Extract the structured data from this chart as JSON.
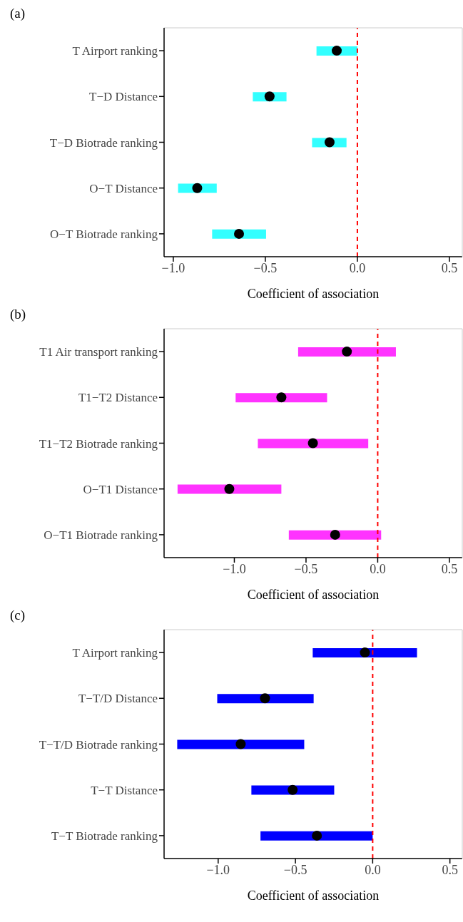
{
  "chart_data": [
    {
      "type": "bar",
      "orientation": "horizontal",
      "title": "(a)",
      "xlabel": "Coefficient of association",
      "categories": [
        "T Airport ranking",
        "T−D Distance",
        "T−D Biotrade ranking",
        "O−T Distance",
        "O−T Biotrade ranking"
      ],
      "series": [
        {
          "color": "#33ffff",
          "base": [
            -0.222,
            -0.568,
            -0.246,
            -0.974,
            -0.789
          ],
          "values": [
            0.222,
            0.183,
            0.187,
            0.21,
            0.293
          ]
        },
        {
          "type": "scatter",
          "color": "#000000",
          "marker": "circle",
          "values": [
            -0.112,
            -0.477,
            -0.151,
            -0.87,
            -0.643
          ]
        }
      ],
      "xlim": [
        -1.05,
        0.57
      ],
      "xticks": [
        {
          "value": -1,
          "label": "−1.0"
        },
        {
          "value": -0.5,
          "label": "−0.5"
        },
        {
          "value": 0,
          "label": "0.0"
        },
        {
          "value": 0.5,
          "label": "0.5"
        }
      ],
      "ref_lines": [
        {
          "axis": "x",
          "value": 0,
          "color": "#ff0000",
          "line_style": "dashed"
        }
      ],
      "grid": false,
      "legend": false
    },
    {
      "type": "bar",
      "orientation": "horizontal",
      "title": "(b)",
      "xlabel": "Coefficient of association",
      "categories": [
        "T1 Air transport ranking",
        "T1−T2 Distance",
        "T1−T2 Biotrade ranking",
        "O−T1 Distance",
        "O−T1 Biotrade ranking"
      ],
      "series": [
        {
          "color": "#ff33ff",
          "base": [
            -0.555,
            -0.991,
            -0.836,
            -1.396,
            -0.62
          ],
          "values": [
            0.682,
            0.638,
            0.77,
            0.724,
            0.644
          ]
        },
        {
          "type": "scatter",
          "color": "#000000",
          "marker": "circle",
          "values": [
            -0.215,
            -0.672,
            -0.452,
            -1.035,
            -0.297
          ]
        }
      ],
      "xlim": [
        -1.49,
        0.59
      ],
      "xticks": [
        {
          "value": -1,
          "label": "−1.0"
        },
        {
          "value": -0.5,
          "label": "−0.5"
        },
        {
          "value": 0,
          "label": "0.0"
        },
        {
          "value": 0.5,
          "label": "0.5"
        }
      ],
      "ref_lines": [
        {
          "axis": "x",
          "value": 0,
          "color": "#ff0000",
          "line_style": "dashed"
        }
      ],
      "grid": false,
      "legend": false
    },
    {
      "type": "bar",
      "orientation": "horizontal",
      "title": "(c)",
      "xlabel": "Coefficient of association",
      "categories": [
        "T Airport ranking",
        "T−T/D Distance",
        "T−T/D Biotrade ranking",
        "T−T Distance",
        "T−T Biotrade ranking"
      ],
      "series": [
        {
          "color": "#0000ff",
          "base": [
            -0.388,
            -1.006,
            -1.265,
            -0.785,
            -0.726
          ],
          "values": [
            0.675,
            0.624,
            0.822,
            0.536,
            0.726
          ]
        },
        {
          "type": "scatter",
          "color": "#000000",
          "marker": "circle",
          "values": [
            -0.05,
            -0.697,
            -0.854,
            -0.518,
            -0.361
          ]
        }
      ],
      "xlim": [
        -1.35,
        0.58
      ],
      "xticks": [
        {
          "value": -1,
          "label": "−1.0"
        },
        {
          "value": -0.5,
          "label": "−0.5"
        },
        {
          "value": 0,
          "label": "0.0"
        },
        {
          "value": 0.5,
          "label": "0.5"
        }
      ],
      "ref_lines": [
        {
          "axis": "x",
          "value": 0,
          "color": "#ff0000",
          "line_style": "dashed"
        }
      ],
      "grid": false,
      "legend": false
    }
  ]
}
